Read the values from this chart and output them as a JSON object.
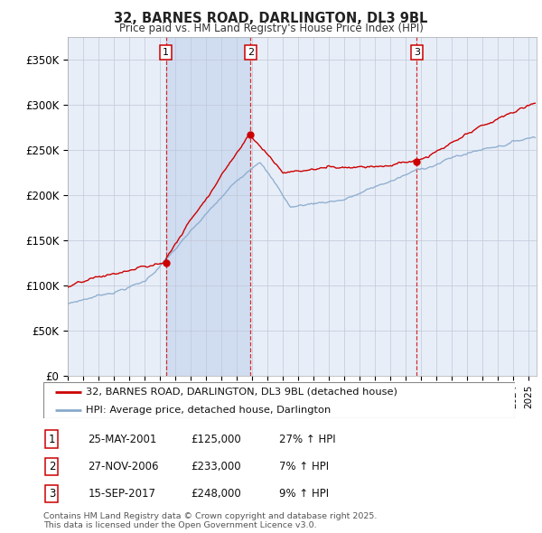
{
  "title": "32, BARNES ROAD, DARLINGTON, DL3 9BL",
  "subtitle": "Price paid vs. HM Land Registry's House Price Index (HPI)",
  "background_color": "#ffffff",
  "plot_background": "#e8eef8",
  "grid_color": "#c0c8d8",
  "ylim": [
    0,
    375000
  ],
  "yticks": [
    0,
    50000,
    100000,
    150000,
    200000,
    250000,
    300000,
    350000
  ],
  "ytick_labels": [
    "£0",
    "£50K",
    "£100K",
    "£150K",
    "£200K",
    "£250K",
    "£300K",
    "£350K"
  ],
  "legend_entries": [
    "32, BARNES ROAD, DARLINGTON, DL3 9BL (detached house)",
    "HPI: Average price, detached house, Darlington"
  ],
  "line_colors": [
    "#cc0000",
    "#88aacc"
  ],
  "transactions": [
    {
      "num": 1,
      "date": "25-MAY-2001",
      "price": 125000,
      "hpi_change": "27% ↑ HPI",
      "year": 2001.38
    },
    {
      "num": 2,
      "date": "27-NOV-2006",
      "price": 233000,
      "hpi_change": "7% ↑ HPI",
      "year": 2006.9
    },
    {
      "num": 3,
      "date": "15-SEP-2017",
      "price": 248000,
      "hpi_change": "9% ↑ HPI",
      "year": 2017.7
    }
  ],
  "footer": "Contains HM Land Registry data © Crown copyright and database right 2025.\nThis data is licensed under the Open Government Licence v3.0.",
  "xmin": 1995.0,
  "xmax": 2025.5,
  "highlight_color": "#d0dcf0"
}
